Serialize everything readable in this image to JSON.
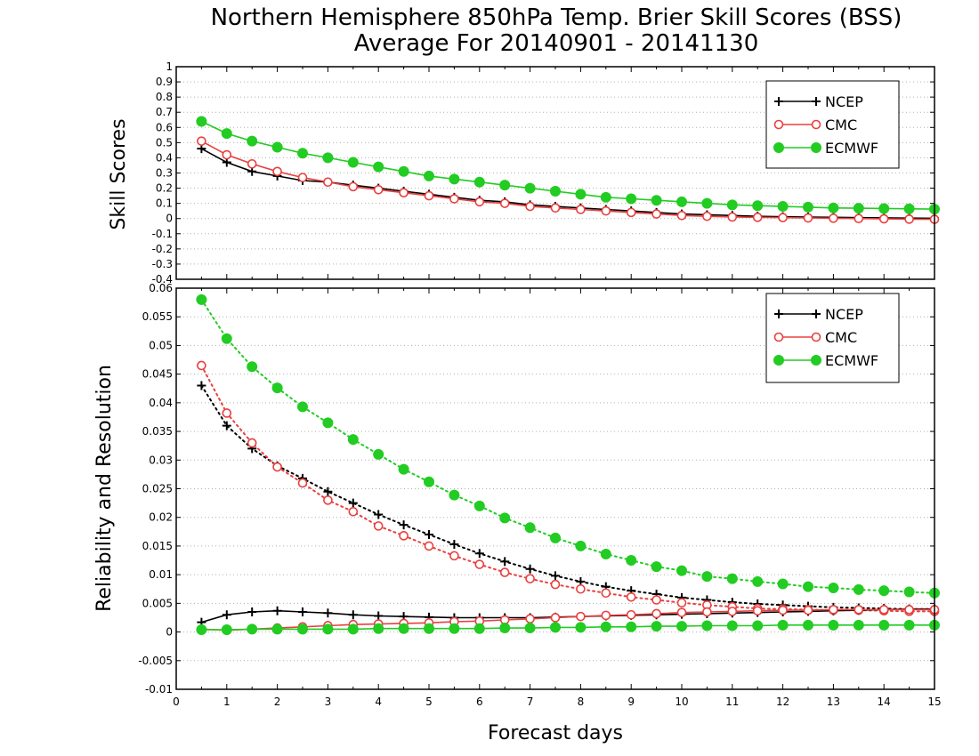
{
  "title": {
    "line1": "Northern Hemisphere 850hPa Temp. Brier Skill Scores (BSS)",
    "line2": "Average For 20140901 - 20141130"
  },
  "xaxis": {
    "label": "Forecast days",
    "ticks": [
      "0",
      "1",
      "2",
      "3",
      "4",
      "5",
      "6",
      "7",
      "8",
      "9",
      "10",
      "11",
      "12",
      "13",
      "14",
      "15"
    ]
  },
  "colors": {
    "NCEP": "#000000",
    "CMC": "#e8403f",
    "ECMWF": "#22cc22"
  },
  "chart_data": [
    {
      "type": "line",
      "ylabel": "Skill Scores",
      "xlim": [
        0,
        15
      ],
      "ylim": [
        -0.4,
        1
      ],
      "grid": true,
      "legend_placement": "top-right",
      "yticks": [
        "-0.4",
        "-0.3",
        "-0.2",
        "-0.1",
        "0",
        "0.1",
        "0.2",
        "0.3",
        "0.4",
        "0.5",
        "0.6",
        "0.7",
        "0.8",
        "0.9",
        "1"
      ],
      "x": [
        0.5,
        1,
        1.5,
        2,
        2.5,
        3,
        3.5,
        4,
        4.5,
        5,
        5.5,
        6,
        6.5,
        7,
        7.5,
        8,
        8.5,
        9,
        9.5,
        10,
        10.5,
        11,
        11.5,
        12,
        12.5,
        13,
        13.5,
        14,
        14.5,
        15
      ],
      "series": [
        {
          "name": "NCEP",
          "marker": "plus",
          "style": "solid",
          "values": [
            0.46,
            0.37,
            0.31,
            0.28,
            0.25,
            0.24,
            0.22,
            0.2,
            0.18,
            0.16,
            0.14,
            0.12,
            0.11,
            0.09,
            0.08,
            0.07,
            0.06,
            0.05,
            0.04,
            0.03,
            0.025,
            0.02,
            0.015,
            0.012,
            0.01,
            0.008,
            0.006,
            0.005,
            0.003,
            0.002
          ]
        },
        {
          "name": "CMC",
          "marker": "circle-open",
          "style": "solid",
          "values": [
            0.51,
            0.42,
            0.36,
            0.31,
            0.27,
            0.24,
            0.21,
            0.19,
            0.17,
            0.15,
            0.13,
            0.11,
            0.1,
            0.08,
            0.07,
            0.06,
            0.05,
            0.04,
            0.03,
            0.02,
            0.015,
            0.01,
            0.008,
            0.006,
            0.004,
            0.002,
            0.0,
            -0.002,
            -0.004,
            -0.005
          ]
        },
        {
          "name": "ECMWF",
          "marker": "circle-filled",
          "style": "solid",
          "values": [
            0.64,
            0.56,
            0.51,
            0.47,
            0.43,
            0.4,
            0.37,
            0.34,
            0.31,
            0.28,
            0.26,
            0.24,
            0.22,
            0.2,
            0.18,
            0.16,
            0.14,
            0.13,
            0.12,
            0.11,
            0.1,
            0.09,
            0.085,
            0.08,
            0.075,
            0.07,
            0.068,
            0.066,
            0.064,
            0.062
          ]
        }
      ]
    },
    {
      "type": "line",
      "ylabel": "Reliability and Resolution",
      "xlabel": "Forecast days",
      "xlim": [
        0,
        15
      ],
      "ylim": [
        -0.01,
        0.06
      ],
      "grid": true,
      "legend_placement": "top-right",
      "yticks": [
        "-0.01",
        "-0.005",
        "0",
        "0.005",
        "0.01",
        "0.015",
        "0.02",
        "0.025",
        "0.03",
        "0.035",
        "0.04",
        "0.045",
        "0.05",
        "0.055",
        "0.06"
      ],
      "x": [
        0.5,
        1,
        1.5,
        2,
        2.5,
        3,
        3.5,
        4,
        4.5,
        5,
        5.5,
        6,
        6.5,
        7,
        7.5,
        8,
        8.5,
        9,
        9.5,
        10,
        10.5,
        11,
        11.5,
        12,
        12.5,
        13,
        13.5,
        14,
        14.5,
        15
      ],
      "series": [
        {
          "name": "NCEP",
          "group": "resolution",
          "marker": "plus",
          "style": "dotted",
          "values": [
            0.043,
            0.036,
            0.032,
            0.029,
            0.0268,
            0.0245,
            0.0225,
            0.0205,
            0.0187,
            0.017,
            0.0153,
            0.0137,
            0.0123,
            0.011,
            0.0098,
            0.0088,
            0.0079,
            0.0072,
            0.0066,
            0.006,
            0.0056,
            0.0052,
            0.0049,
            0.0047,
            0.0045,
            0.0043,
            0.0042,
            0.0041,
            0.004,
            0.004
          ]
        },
        {
          "name": "CMC",
          "group": "resolution",
          "marker": "circle-open",
          "style": "dotted",
          "values": [
            0.0465,
            0.0382,
            0.033,
            0.0288,
            0.026,
            0.023,
            0.021,
            0.0185,
            0.0168,
            0.015,
            0.0133,
            0.0118,
            0.0104,
            0.0093,
            0.0083,
            0.0075,
            0.0068,
            0.0061,
            0.0056,
            0.0051,
            0.0047,
            0.0044,
            0.0041,
            0.004,
            0.0039,
            0.0038,
            0.0038,
            0.0037,
            0.0036,
            0.0036
          ]
        },
        {
          "name": "ECMWF",
          "group": "resolution",
          "marker": "circle-filled",
          "style": "dotted",
          "values": [
            0.058,
            0.0512,
            0.0463,
            0.0426,
            0.0393,
            0.0365,
            0.0336,
            0.031,
            0.0284,
            0.0262,
            0.0239,
            0.022,
            0.0199,
            0.0182,
            0.0164,
            0.015,
            0.0136,
            0.0125,
            0.0114,
            0.0107,
            0.0097,
            0.0093,
            0.0088,
            0.0084,
            0.0079,
            0.0077,
            0.0074,
            0.0072,
            0.007,
            0.0068
          ]
        },
        {
          "name": "NCEP",
          "group": "reliability",
          "marker": "plus",
          "style": "solid",
          "values": [
            0.0017,
            0.003,
            0.0035,
            0.0037,
            0.0035,
            0.0033,
            0.003,
            0.0028,
            0.0027,
            0.0026,
            0.0025,
            0.0025,
            0.0025,
            0.0025,
            0.0026,
            0.0027,
            0.0028,
            0.0029,
            0.003,
            0.0031,
            0.0032,
            0.0033,
            0.0034,
            0.0035,
            0.0036,
            0.0037,
            0.0038,
            0.0039,
            0.004,
            0.004
          ]
        },
        {
          "name": "CMC",
          "group": "reliability",
          "marker": "circle-open",
          "style": "solid",
          "values": [
            0.0005,
            0.0003,
            0.0005,
            0.0007,
            0.0009,
            0.0011,
            0.0013,
            0.0014,
            0.0015,
            0.0016,
            0.0018,
            0.0019,
            0.0021,
            0.0023,
            0.0025,
            0.0027,
            0.0029,
            0.003,
            0.0032,
            0.0034,
            0.0035,
            0.0036,
            0.0037,
            0.0038,
            0.0038,
            0.0039,
            0.0039,
            0.0039,
            0.0039,
            0.0039
          ]
        },
        {
          "name": "ECMWF",
          "group": "reliability",
          "marker": "circle-filled",
          "style": "solid",
          "values": [
            0.0004,
            0.0004,
            0.0005,
            0.0005,
            0.0005,
            0.0005,
            0.0005,
            0.0006,
            0.0006,
            0.0006,
            0.0006,
            0.0006,
            0.0007,
            0.0007,
            0.0008,
            0.0008,
            0.0009,
            0.0009,
            0.001,
            0.001,
            0.0011,
            0.0011,
            0.0011,
            0.0012,
            0.0012,
            0.0012,
            0.0012,
            0.0012,
            0.0012,
            0.0012
          ]
        }
      ]
    }
  ]
}
